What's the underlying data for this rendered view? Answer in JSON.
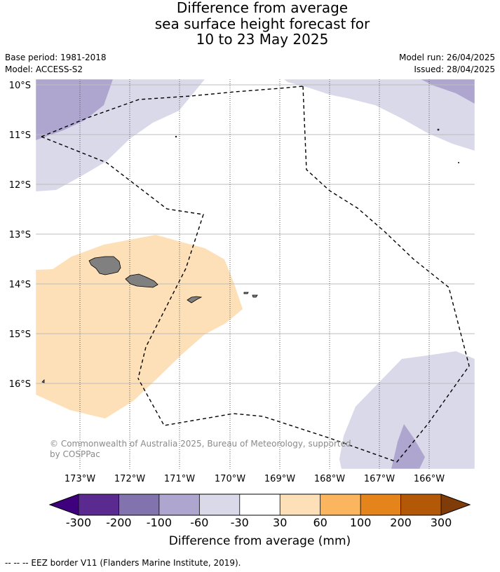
{
  "title": {
    "line1": "Difference from average",
    "line2": "sea surface height forecast for",
    "line3": "10 to 23 May 2025"
  },
  "meta": {
    "base_period": "Base period: 1981-2018",
    "model": "Model: ACCESS-S2",
    "model_run": "Model run: 26/04/2025",
    "issued": "Issued: 28/04/2025"
  },
  "map": {
    "lat_labels": [
      "10°S",
      "11°S",
      "12°S",
      "13°S",
      "14°S",
      "15°S",
      "16°S"
    ],
    "lon_labels": [
      "173°W",
      "172°W",
      "171°W",
      "170°W",
      "169°W",
      "168°W",
      "167°W",
      "166°W"
    ],
    "credit": "© Commonwealth of Australia 2025, Bureau of Meteorology, supported by COSPPac",
    "land_color": "#808080"
  },
  "colorbar": {
    "ticks": [
      "-300",
      "-200",
      "-100",
      "-60",
      "-30",
      "30",
      "60",
      "100",
      "200",
      "300"
    ],
    "colors": [
      "#3f007d",
      "#5a2a91",
      "#8273ae",
      "#aea6cf",
      "#d9d9ea",
      "#ffffff",
      "#fde0b7",
      "#fbb55e",
      "#e4841b",
      "#b35806",
      "#7f3b08"
    ],
    "label": "Difference from average (mm)"
  },
  "footer": "--  --  -- EEZ border V11 (Flanders Marine Institute, 2019)."
}
